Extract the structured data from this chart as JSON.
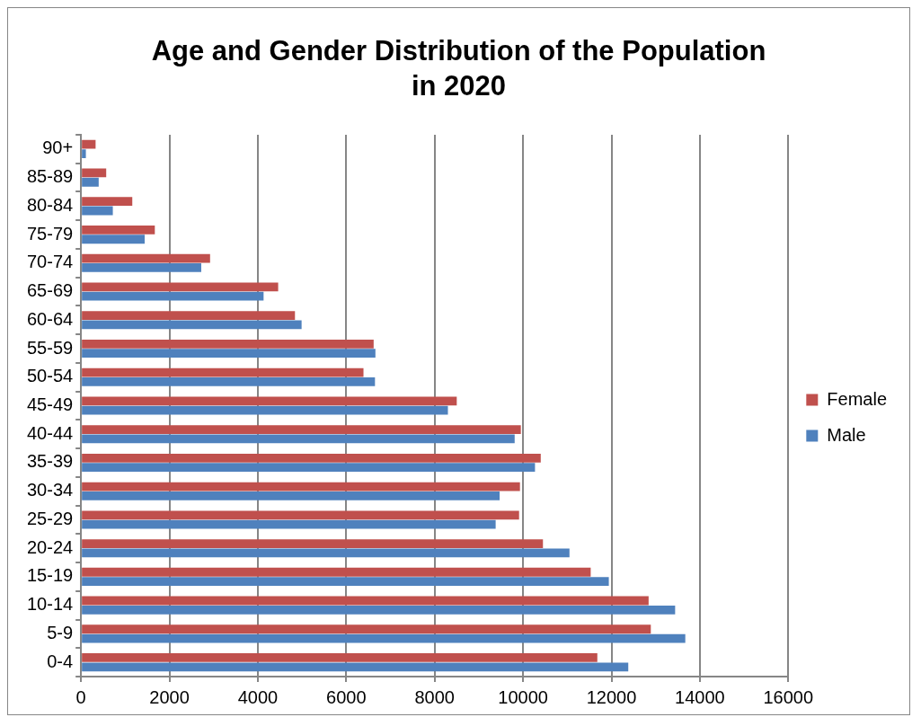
{
  "chart_data": {
    "type": "bar",
    "orientation": "horizontal",
    "title": "Age and Gender Distribution of the Population in 2020",
    "categories": [
      "90+",
      "85-89",
      "80-84",
      "75-79",
      "70-74",
      "65-69",
      "60-64",
      "55-59",
      "50-54",
      "45-49",
      "40-44",
      "35-39",
      "30-34",
      "25-29",
      "20-24",
      "15-19",
      "10-14",
      "5-9",
      "0-4"
    ],
    "series": [
      {
        "name": "Female",
        "color": "#c0504d",
        "values": [
          330,
          570,
          1160,
          1670,
          2920,
          4460,
          4840,
          6620,
          6390,
          8500,
          9950,
          10400,
          9930,
          9910,
          10450,
          11530,
          12840,
          12890,
          11680
        ]
      },
      {
        "name": "Male",
        "color": "#4f81bd",
        "values": [
          110,
          400,
          720,
          1440,
          2720,
          4130,
          4990,
          6660,
          6650,
          8300,
          9810,
          10270,
          9470,
          9380,
          11050,
          11940,
          13440,
          13670,
          12380
        ]
      }
    ],
    "xlim": [
      0,
      16000
    ],
    "xticks": [
      0,
      2000,
      4000,
      6000,
      8000,
      10000,
      12000,
      14000,
      16000
    ],
    "grid": "x",
    "legend": "right"
  }
}
